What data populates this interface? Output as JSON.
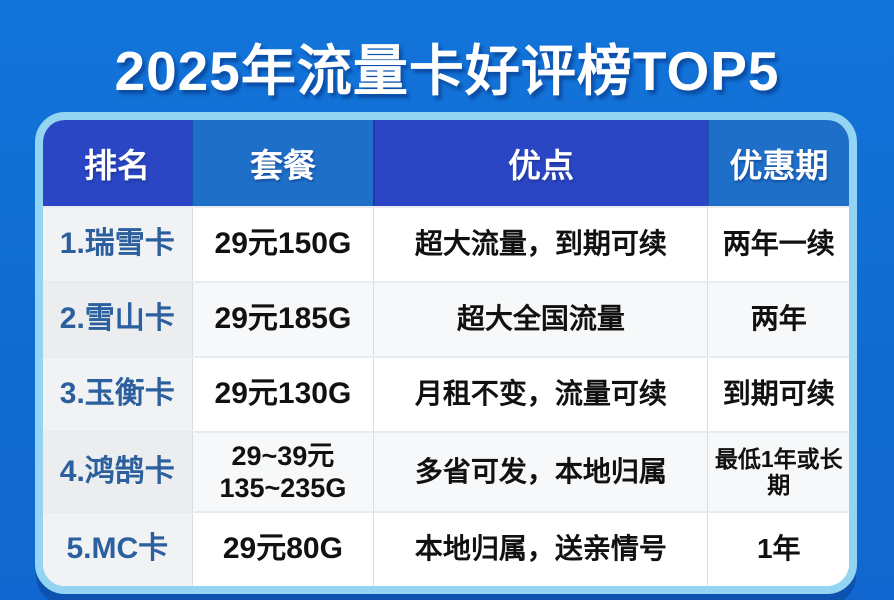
{
  "title": "2025年流量卡好评榜TOP5",
  "table": {
    "headers": [
      "排名",
      "套餐",
      "优点",
      "优惠期"
    ],
    "rows": [
      {
        "rank": "1.瑞雪卡",
        "plan1": "29元150G",
        "pros": "超大流量，到期可续",
        "period": "两年一续"
      },
      {
        "rank": "2.雪山卡",
        "plan1": "29元185G",
        "pros": "超大全国流量",
        "period": "两年"
      },
      {
        "rank": "3.玉衡卡",
        "plan1": "29元130G",
        "pros": "月租不变，流量可续",
        "period": "到期可续"
      },
      {
        "rank": "4.鸿鹄卡",
        "plan1": "29~39元",
        "plan2": "135~235G",
        "pros": "多省可发，本地归属",
        "period": "最低1年或长期"
      },
      {
        "rank": "5.MC卡",
        "plan1": "29元80G",
        "pros": "本地归属，送亲情号",
        "period": "1年"
      }
    ]
  },
  "colors": {
    "background": "#1270d5",
    "frame_border": "#93d4f2",
    "header_dark": "#2b46c4",
    "header_light": "#1e6fc8",
    "rank_column_bg": "#f1f2f4",
    "rank_text": "#2c5f9e",
    "body_text": "#111111",
    "title_text": "#ffffff",
    "table_shadow": "#0d52ae"
  },
  "chart_data": {
    "type": "table",
    "title": "2025年流量卡好评榜TOP5",
    "columns": [
      "排名",
      "套餐",
      "优点",
      "优惠期"
    ],
    "rows": [
      [
        "1.瑞雪卡",
        "29元150G",
        "超大流量，到期可续",
        "两年一续"
      ],
      [
        "2.雪山卡",
        "29元185G",
        "超大全国流量",
        "两年"
      ],
      [
        "3.玉衡卡",
        "29元130G",
        "月租不变，流量可续",
        "到期可续"
      ],
      [
        "4.鸿鹄卡",
        "29~39元 135~235G",
        "多省可发，本地归属",
        "最低1年或长期"
      ],
      [
        "5.MC卡",
        "29元80G",
        "本地归属，送亲情号",
        "1年"
      ]
    ]
  }
}
